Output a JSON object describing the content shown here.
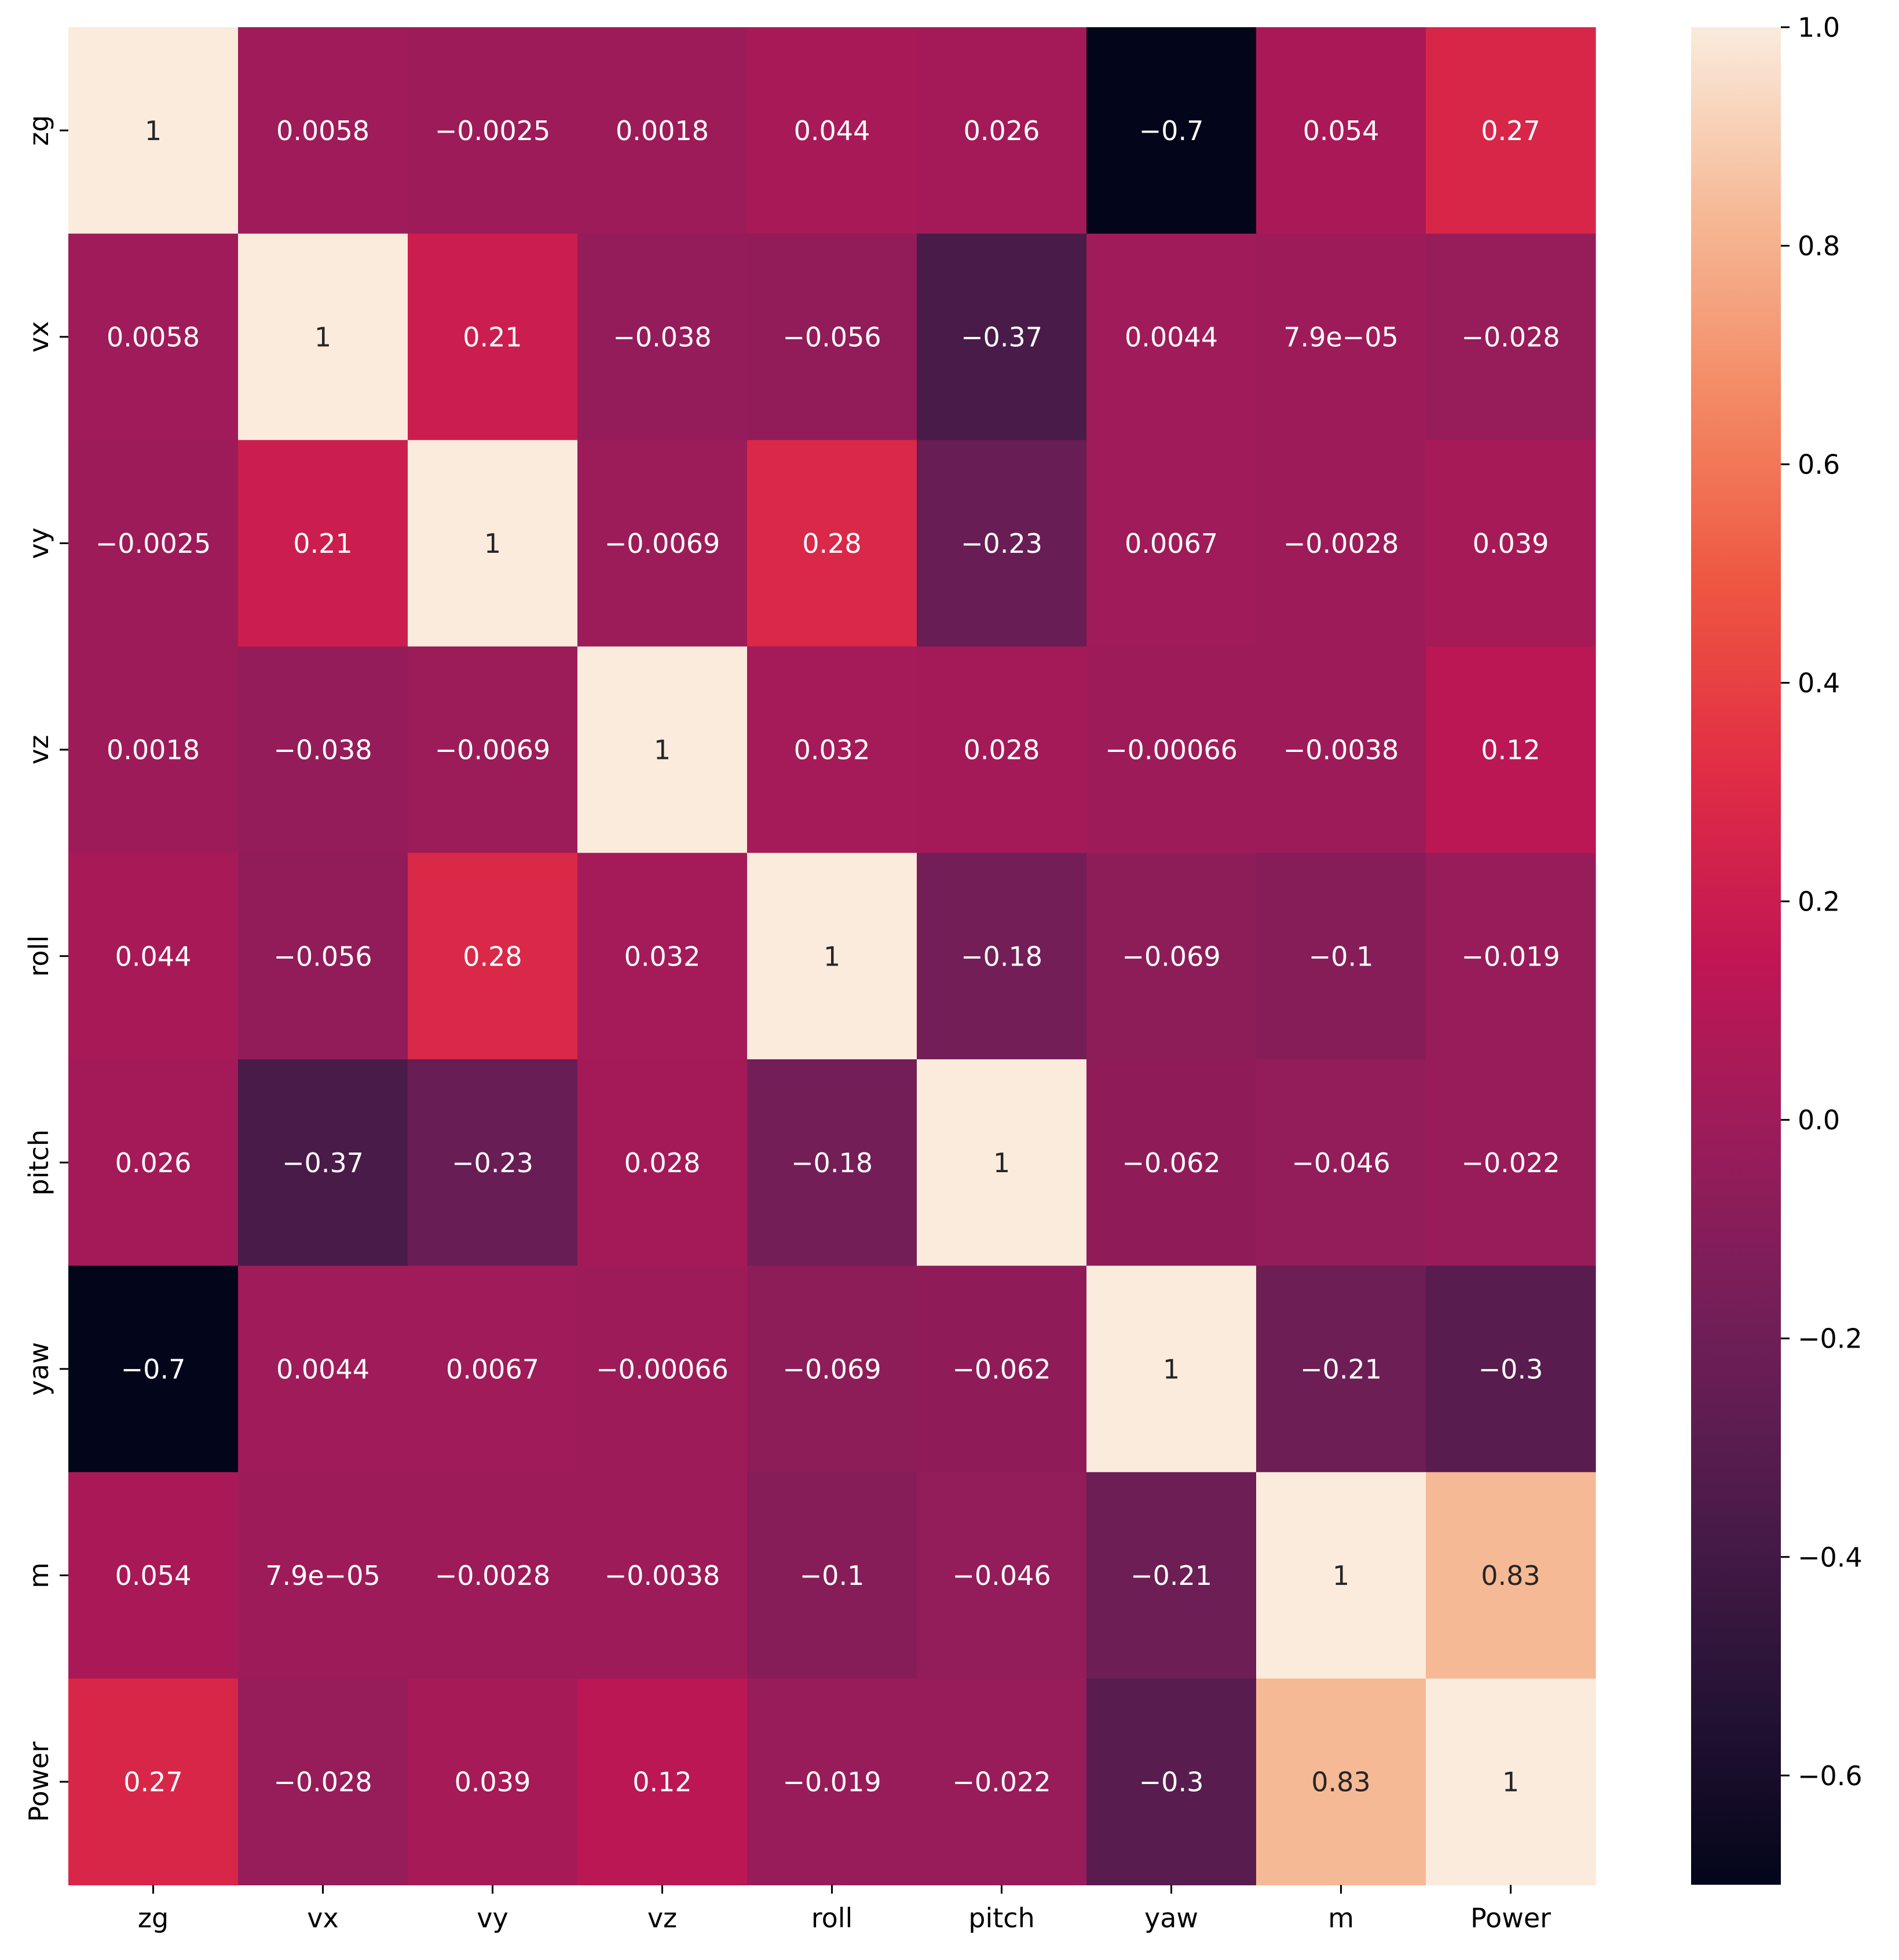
{
  "chart_data": {
    "type": "heatmap",
    "title": "",
    "xlabel": "",
    "ylabel": "",
    "x_categories": [
      "zg",
      "vx",
      "vy",
      "vz",
      "roll",
      "pitch",
      "yaw",
      "m",
      "Power"
    ],
    "y_categories": [
      "zg",
      "vx",
      "vy",
      "vz",
      "roll",
      "pitch",
      "yaw",
      "m",
      "Power"
    ],
    "values": [
      [
        1,
        0.0058,
        -0.0025,
        0.0018,
        0.044,
        0.026,
        -0.7,
        0.054,
        0.27
      ],
      [
        0.0058,
        1,
        0.21,
        -0.038,
        -0.056,
        -0.37,
        0.0044,
        7.9e-05,
        -0.028
      ],
      [
        -0.0025,
        0.21,
        1,
        -0.0069,
        0.28,
        -0.23,
        0.0067,
        -0.0028,
        0.039
      ],
      [
        0.0018,
        -0.038,
        -0.0069,
        1,
        0.032,
        0.028,
        -0.00066,
        -0.0038,
        0.12
      ],
      [
        0.044,
        -0.056,
        0.28,
        0.032,
        1,
        -0.18,
        -0.069,
        -0.1,
        -0.019
      ],
      [
        0.026,
        -0.37,
        -0.23,
        0.028,
        -0.18,
        1,
        -0.062,
        -0.046,
        -0.022
      ],
      [
        -0.7,
        0.0044,
        0.0067,
        -0.00066,
        -0.069,
        -0.062,
        1,
        -0.21,
        -0.3
      ],
      [
        0.054,
        7.9e-05,
        -0.0028,
        -0.0038,
        -0.1,
        -0.046,
        -0.21,
        1,
        0.83
      ],
      [
        0.27,
        -0.028,
        0.039,
        0.12,
        -0.019,
        -0.022,
        -0.3,
        0.83,
        1
      ]
    ],
    "annotations": [
      [
        "1",
        "0.0058",
        "−0.0025",
        "0.0018",
        "0.044",
        "0.026",
        "−0.7",
        "0.054",
        "0.27"
      ],
      [
        "0.0058",
        "1",
        "0.21",
        "−0.038",
        "−0.056",
        "−0.37",
        "0.0044",
        "7.9e−05",
        "−0.028"
      ],
      [
        "−0.0025",
        "0.21",
        "1",
        "−0.0069",
        "0.28",
        "−0.23",
        "0.0067",
        "−0.0028",
        "0.039"
      ],
      [
        "0.0018",
        "−0.038",
        "−0.0069",
        "1",
        "0.032",
        "0.028",
        "−0.00066",
        "−0.0038",
        "0.12"
      ],
      [
        "0.044",
        "−0.056",
        "0.28",
        "0.032",
        "1",
        "−0.18",
        "−0.069",
        "−0.1",
        "−0.019"
      ],
      [
        "0.026",
        "−0.37",
        "−0.23",
        "0.028",
        "−0.18",
        "1",
        "−0.062",
        "−0.046",
        "−0.022"
      ],
      [
        "−0.7",
        "0.0044",
        "0.0067",
        "−0.00066",
        "−0.069",
        "−0.062",
        "1",
        "−0.21",
        "−0.3"
      ],
      [
        "0.054",
        "7.9e−05",
        "−0.0028",
        "−0.0038",
        "−0.1",
        "−0.046",
        "−0.21",
        "1",
        "0.83"
      ],
      [
        "0.27",
        "−0.028",
        "0.039",
        "0.12",
        "−0.019",
        "−0.022",
        "−0.3",
        "0.83",
        "1"
      ]
    ],
    "colormap": "rocket",
    "vmin": -0.7,
    "vmax": 1.0,
    "colorbar": {
      "range": [
        -0.7,
        1.0
      ],
      "ticks": [
        -0.6,
        -0.4,
        -0.2,
        0.0,
        0.2,
        0.4,
        0.6,
        0.8,
        1.0
      ],
      "tick_labels": [
        "−0.6",
        "−0.4",
        "−0.2",
        "0.0",
        "0.2",
        "0.4",
        "0.6",
        "0.8",
        "1.0"
      ],
      "placement": "right"
    },
    "grid": false,
    "legend": "none"
  }
}
